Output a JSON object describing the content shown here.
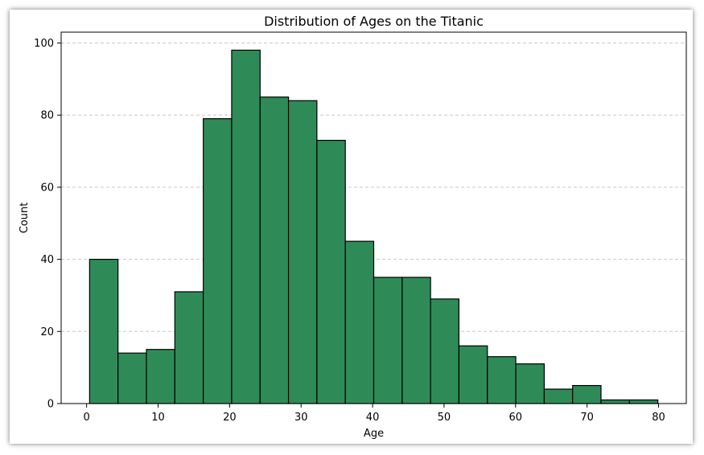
{
  "chart_data": {
    "type": "bar",
    "title": "Distribution of Ages on the Titanic",
    "xlabel": "Age",
    "ylabel": "Count",
    "bin_edges": [
      0.42,
      4.39,
      8.37,
      12.34,
      16.32,
      20.29,
      24.27,
      28.24,
      32.21,
      36.19,
      40.16,
      44.14,
      48.11,
      52.08,
      56.06,
      60.03,
      64.01,
      67.98,
      71.95,
      75.93,
      79.9
    ],
    "values": [
      40,
      14,
      15,
      31,
      79,
      98,
      85,
      84,
      73,
      45,
      35,
      35,
      29,
      16,
      13,
      11,
      4,
      5,
      1,
      1
    ],
    "xlim": [
      -3.56,
      83.88
    ],
    "ylim": [
      0,
      103
    ],
    "xticks": [
      0,
      10,
      20,
      30,
      40,
      50,
      60,
      70,
      80
    ],
    "yticks": [
      0,
      20,
      40,
      60,
      80,
      100
    ],
    "grid": "y-dashed",
    "bar_color": "#2e8b57",
    "edge_color": "#000000",
    "grid_color": "#c8c8c8"
  }
}
